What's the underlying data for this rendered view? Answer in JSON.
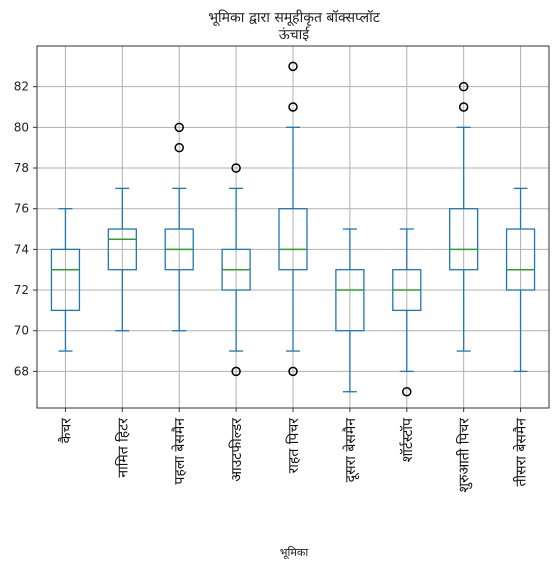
{
  "chart_data": {
    "type": "boxplot",
    "title": "भूमिका द्वारा समूहीकृत बॉक्सप्लॉट",
    "subtitle": "ऊंचाई",
    "xlabel": "भूमिका",
    "ylabel": "",
    "ylim": [
      66.2,
      84
    ],
    "yticks": [
      68,
      70,
      72,
      74,
      76,
      78,
      80,
      82
    ],
    "ytick_labels": [
      "68",
      "70",
      "72",
      "74",
      "76",
      "78",
      "80",
      "82"
    ],
    "grid": true,
    "colors": {
      "box": "#1f77b4",
      "median": "#2ca02c",
      "flier": "#000000",
      "grid": "#b0b0b0"
    },
    "categories": [
      "कैचर",
      "नामित हिटर",
      "पहला बेसमैन",
      "आउटफील्डर",
      "राहत पिचर",
      "दूसरा बेसमैन",
      "शॉर्टस्टॉप",
      "शुरुआती पिचर",
      "तीसरा बेसमैन"
    ],
    "boxes": [
      {
        "category": "कैचर",
        "whislo": 69,
        "q1": 71,
        "med": 73,
        "q3": 74,
        "whishi": 76,
        "fliers": []
      },
      {
        "category": "नामित हिटर",
        "whislo": 70,
        "q1": 73,
        "med": 74.5,
        "q3": 75,
        "whishi": 77,
        "fliers": []
      },
      {
        "category": "पहला बेसमैन",
        "whislo": 70,
        "q1": 73,
        "med": 74,
        "q3": 75,
        "whishi": 77,
        "fliers": [
          79,
          80
        ]
      },
      {
        "category": "आउटफील्डर",
        "whislo": 69,
        "q1": 72,
        "med": 73,
        "q3": 74,
        "whishi": 77,
        "fliers": [
          68,
          78
        ]
      },
      {
        "category": "राहत पिचर",
        "whislo": 69,
        "q1": 73,
        "med": 74,
        "q3": 76,
        "whishi": 80,
        "fliers": [
          68,
          81,
          83
        ]
      },
      {
        "category": "दूसरा बेसमैन",
        "whislo": 67,
        "q1": 70,
        "med": 72,
        "q3": 73,
        "whishi": 75,
        "fliers": []
      },
      {
        "category": "शॉर्टस्टॉप",
        "whislo": 68,
        "q1": 71,
        "med": 72,
        "q3": 73,
        "whishi": 75,
        "fliers": [
          67
        ]
      },
      {
        "category": "शुरुआती पिचर",
        "whislo": 69,
        "q1": 73,
        "med": 74,
        "q3": 76,
        "whishi": 80,
        "fliers": [
          81,
          82
        ]
      },
      {
        "category": "तीसरा बेसमैन",
        "whislo": 68,
        "q1": 72,
        "med": 73,
        "q3": 75,
        "whishi": 77,
        "fliers": []
      }
    ]
  }
}
